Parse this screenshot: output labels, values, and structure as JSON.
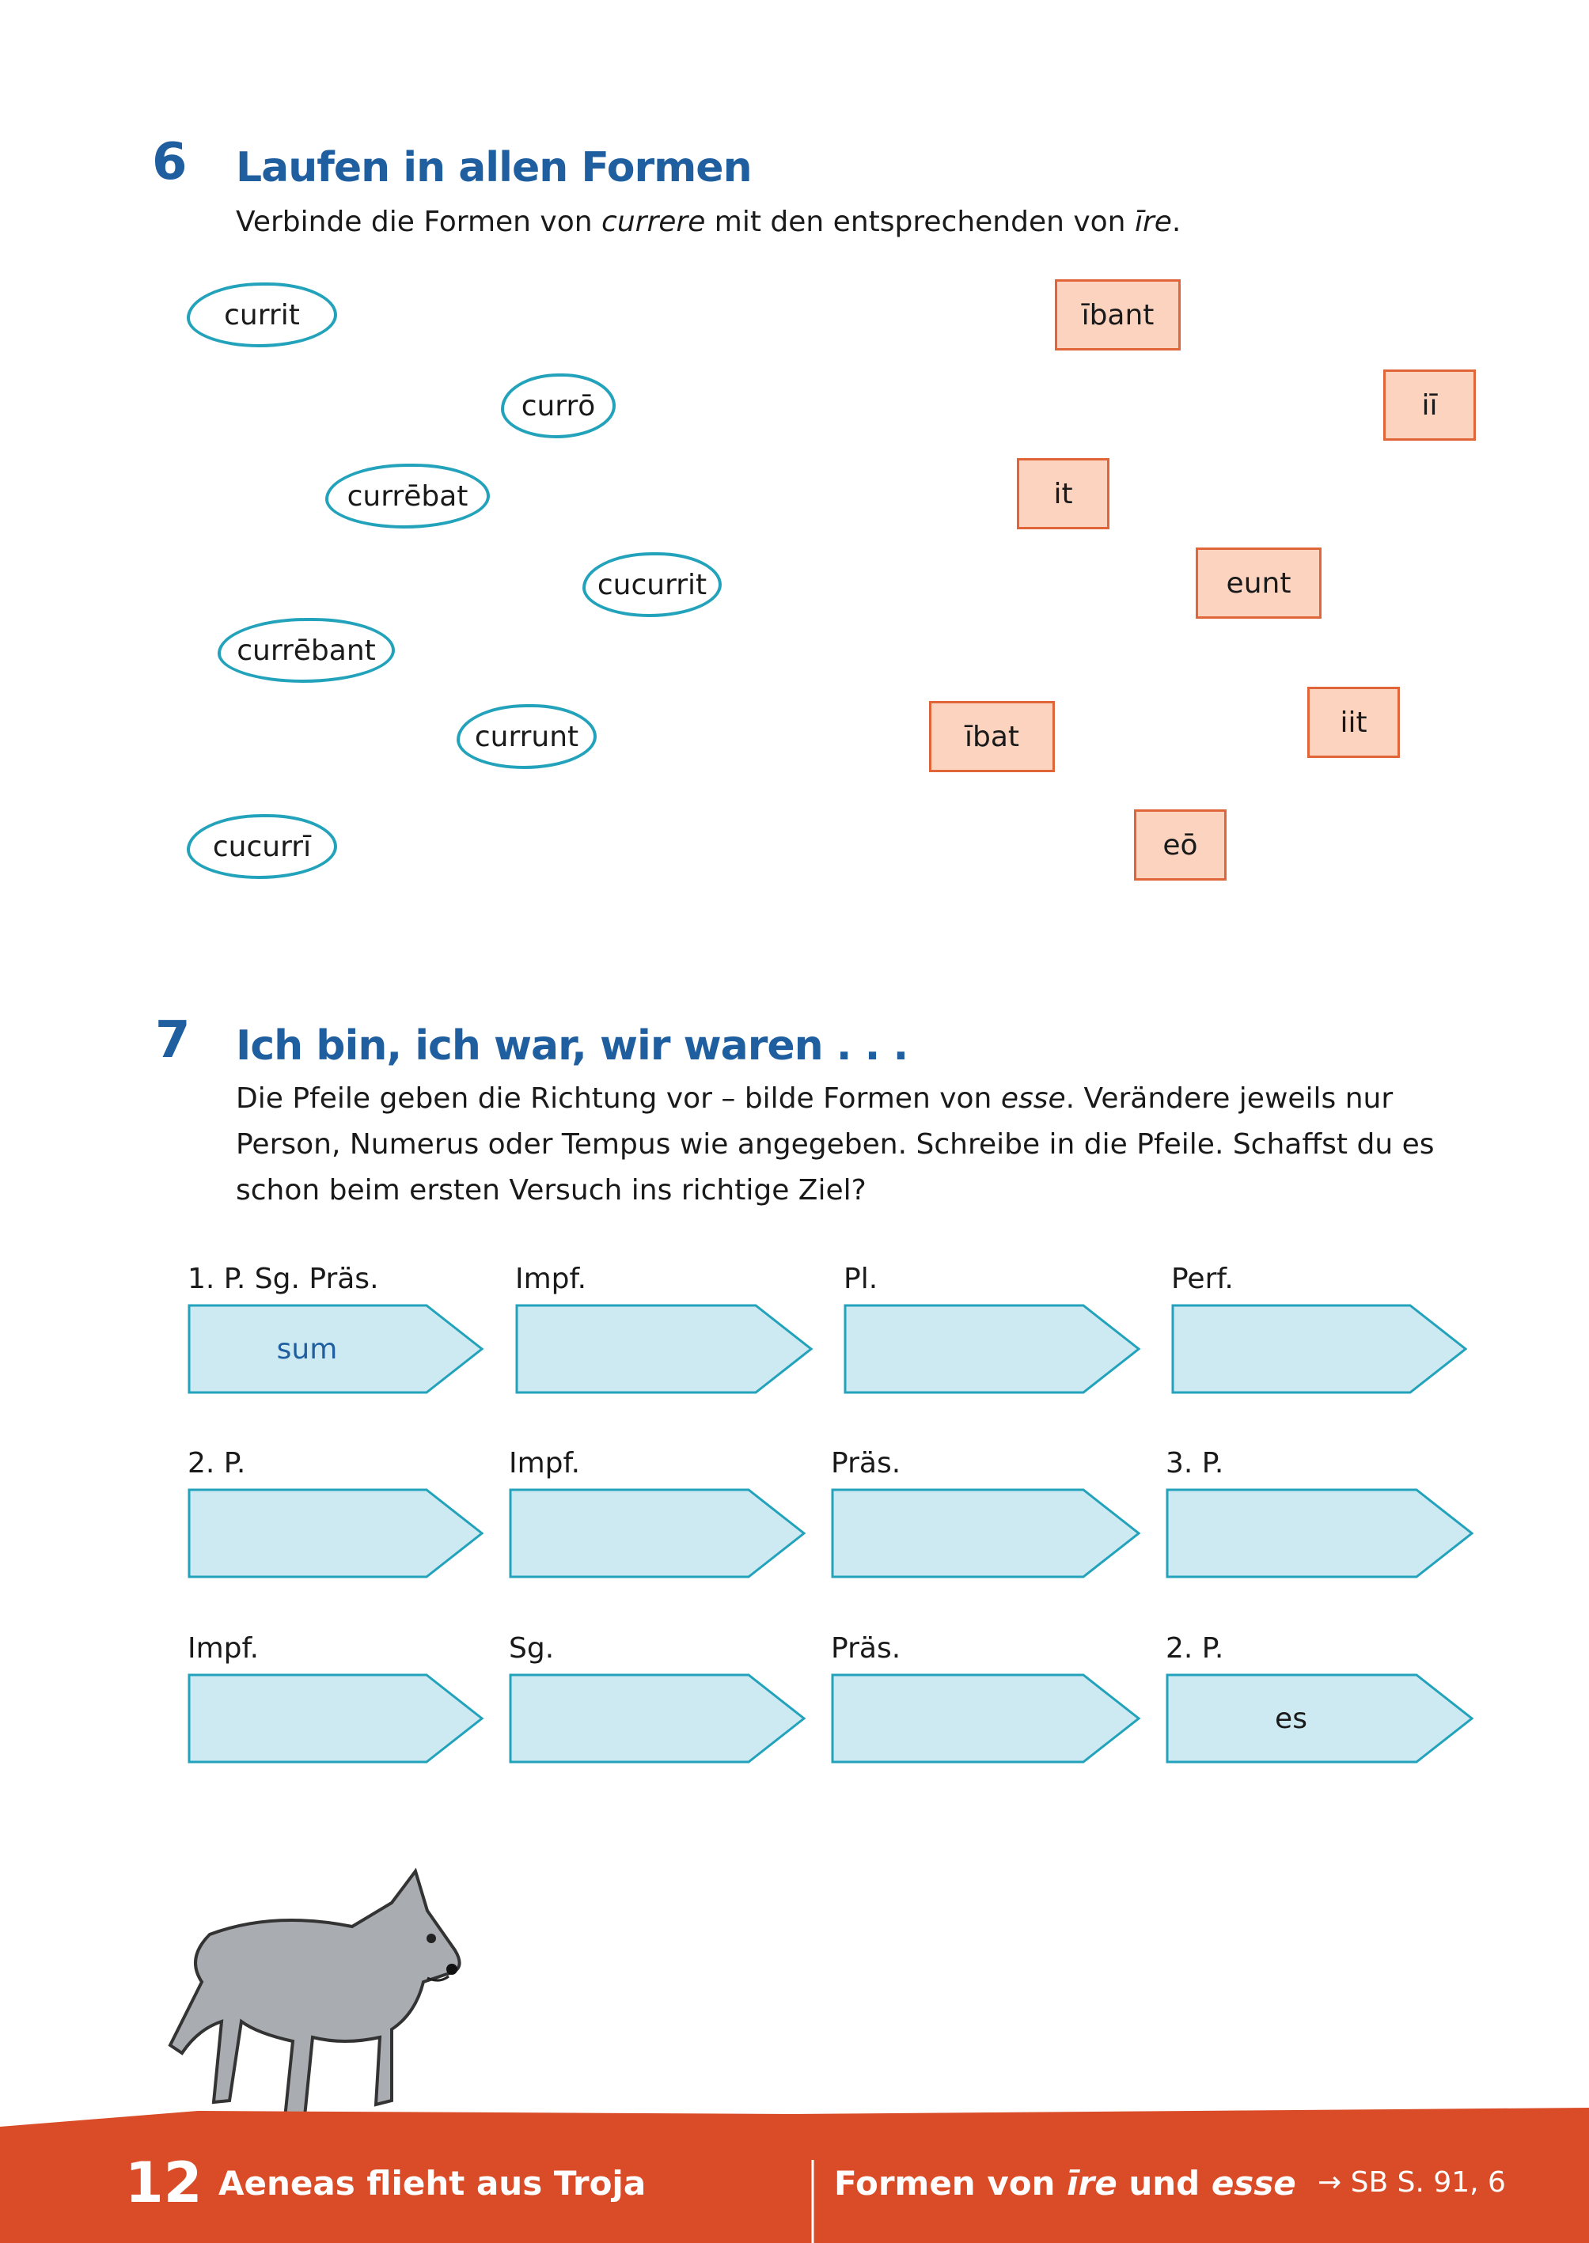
{
  "exercise6": {
    "number": "6",
    "title": "Laufen in allen Formen",
    "instruction": {
      "pre": "Verbinde die Formen von ",
      "verb1": "currere",
      "mid": " mit den entsprechenden von ",
      "verb2": "īre",
      "post": "."
    },
    "currere_forms": [
      "currit",
      "currō",
      "currēbat",
      "cucurrit",
      "currēbant",
      "currunt",
      "cucurrī"
    ],
    "ire_forms": [
      "ībant",
      "iī",
      "it",
      "eunt",
      "ībat",
      "iit",
      "eō"
    ]
  },
  "exercise7": {
    "number": "7",
    "title": "Ich bin, ich war, wir waren . . .",
    "instruction": {
      "pre": "Die Pfeile geben die Richtung vor – bilde Formen von ",
      "verb": "esse",
      "post": ". Verändere jeweils nur Person, Numerus oder Tempus wie angegeben. Schreibe in die Pfeile. Schaffst du es schon beim ersten Versuch ins richtige Ziel?"
    },
    "rows": [
      [
        {
          "label": "1. P. Sg. Präs.",
          "value": "sum"
        },
        {
          "label": "Impf.",
          "value": ""
        },
        {
          "label": "Pl.",
          "value": ""
        },
        {
          "label": "Perf.",
          "value": ""
        }
      ],
      [
        {
          "label": "2. P.",
          "value": ""
        },
        {
          "label": "Impf.",
          "value": ""
        },
        {
          "label": "Präs.",
          "value": ""
        },
        {
          "label": "3. P.",
          "value": ""
        }
      ],
      [
        {
          "label": "Impf.",
          "value": ""
        },
        {
          "label": "Sg.",
          "value": ""
        },
        {
          "label": "Präs.",
          "value": ""
        },
        {
          "label": "2. P.",
          "value": "es"
        }
      ]
    ]
  },
  "footer": {
    "page_number": "12",
    "chapter": "Aeneas flieht aus Troja",
    "topic_pre": "Formen von ",
    "topic_verb1": "īre",
    "topic_mid": " und ",
    "topic_verb2": "esse",
    "reference": "→ SB S. 91, 6"
  },
  "colors": {
    "heading": "#1f5fa0",
    "oval_border": "#23a3bb",
    "box_fill": "#fbd3bf",
    "box_border": "#e0663a",
    "arrow_fill": "#cdeaf3",
    "footer": "#d94c27"
  }
}
